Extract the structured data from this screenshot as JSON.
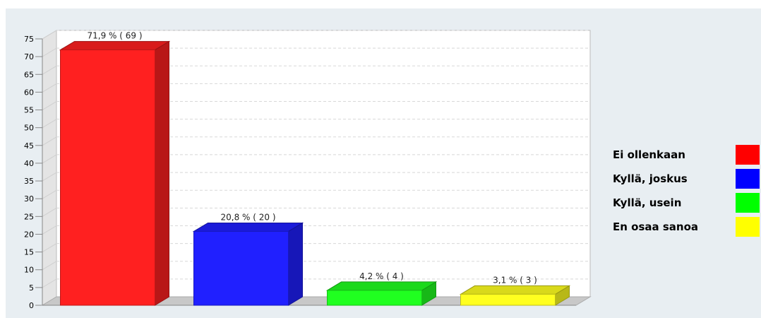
{
  "chart_data": {
    "type": "bar",
    "categories": [
      "Ei ollenkaan",
      "Kyllä, joskus",
      "Kyllä, usein",
      "En osaa sanoa"
    ],
    "values": [
      71.9,
      20.8,
      4.2,
      3.1
    ],
    "counts": [
      69,
      20,
      4,
      3
    ],
    "data_labels": [
      "71,9 % ( 69 )",
      "20,8 % ( 20 )",
      "4,2 % ( 4 )",
      "3,1 % ( 3 )"
    ],
    "colors": [
      "#ff2020",
      "#2020ff",
      "#20ff20",
      "#ffff20"
    ],
    "ylim": [
      0,
      75
    ],
    "yticks": [
      "0",
      "5",
      "10",
      "15",
      "20",
      "25",
      "30",
      "35",
      "40",
      "45",
      "50",
      "55",
      "60",
      "65",
      "70",
      "75"
    ],
    "grid": true,
    "legend_position": "right",
    "style": "3d"
  },
  "legend": {
    "items": [
      {
        "label": "Ei ollenkaan",
        "color": "#ff0000"
      },
      {
        "label": "Kyllä, joskus",
        "color": "#0000ff"
      },
      {
        "label": "Kyllä, usein",
        "color": "#00ff00"
      },
      {
        "label": "En osaa sanoa",
        "color": "#ffff00"
      }
    ]
  }
}
